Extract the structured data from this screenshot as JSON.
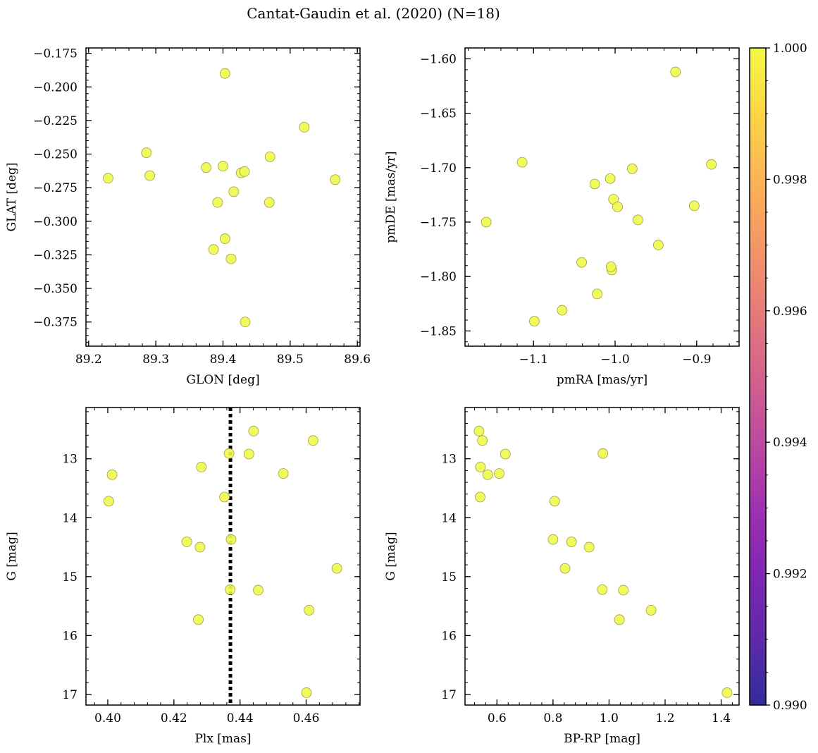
{
  "title": "Cantat-Gaudin et al. (2020) (N=18)",
  "colors": {
    "point_fill": "#f0f94b",
    "point_edge": "#9c9c4c",
    "axis": "#000000",
    "vline": "#000000"
  },
  "colorbar": {
    "ticks": [
      "1.000",
      "0.998",
      "0.996",
      "0.994",
      "0.992",
      "0.990"
    ],
    "tick_values": [
      1.0,
      0.998,
      0.996,
      0.994,
      0.992,
      0.99
    ],
    "range": [
      0.99,
      1.0
    ],
    "colormap": "plasma"
  },
  "chart_data": [
    {
      "type": "scatter",
      "name": "glon-glat",
      "xlabel": "GLON [deg]",
      "ylabel": "GLAT [deg]",
      "xlim": [
        89.196,
        89.604
      ],
      "ylim": [
        -0.393,
        -0.171
      ],
      "xticks": [
        89.2,
        89.3,
        89.4,
        89.5,
        89.6
      ],
      "xtick_labels": [
        "89.2",
        "89.3",
        "89.4",
        "89.5",
        "89.6"
      ],
      "yticks": [
        -0.175,
        -0.2,
        -0.225,
        -0.25,
        -0.275,
        -0.3,
        -0.325,
        -0.35,
        -0.375
      ],
      "ytick_labels": [
        "−0.175",
        "−0.200",
        "−0.225",
        "−0.250",
        "−0.275",
        "−0.300",
        "−0.325",
        "−0.350",
        "−0.375"
      ],
      "x": [
        89.403,
        89.521,
        89.286,
        89.47,
        89.229,
        89.291,
        89.375,
        89.4,
        89.427,
        89.432,
        89.567,
        89.416,
        89.392,
        89.469,
        89.403,
        89.386,
        89.412,
        89.433
      ],
      "y": [
        -0.19,
        -0.23,
        -0.249,
        -0.252,
        -0.268,
        -0.266,
        -0.26,
        -0.259,
        -0.264,
        -0.263,
        -0.269,
        -0.278,
        -0.286,
        -0.286,
        -0.313,
        -0.321,
        -0.328,
        -0.375
      ]
    },
    {
      "type": "scatter",
      "name": "pmra-pmde",
      "xlabel": "pmRA [mas/yr]",
      "ylabel": "pmDE [mas/yr]",
      "xlim": [
        -1.184,
        -0.848
      ],
      "ylim": [
        -1.864,
        -1.59
      ],
      "xticks": [
        -1.1,
        -1.0,
        -0.9
      ],
      "xtick_labels": [
        "−1.1",
        "−1.0",
        "−0.9"
      ],
      "yticks": [
        -1.6,
        -1.65,
        -1.7,
        -1.75,
        -1.8,
        -1.85
      ],
      "ytick_labels": [
        "−1.60",
        "−1.65",
        "−1.70",
        "−1.75",
        "−1.80",
        "−1.85"
      ],
      "x": [
        -0.926,
        -1.114,
        -0.882,
        -0.979,
        -1.006,
        -1.025,
        -1.002,
        -0.997,
        -1.158,
        -0.903,
        -0.972,
        -0.947,
        -1.041,
        -1.004,
        -1.005,
        -1.022,
        -1.065,
        -1.099
      ],
      "y": [
        -1.612,
        -1.695,
        -1.697,
        -1.701,
        -1.71,
        -1.715,
        -1.729,
        -1.736,
        -1.75,
        -1.735,
        -1.748,
        -1.771,
        -1.787,
        -1.794,
        -1.791,
        -1.816,
        -1.831,
        -1.841
      ]
    },
    {
      "type": "scatter",
      "name": "plx-g",
      "xlabel": "Plx [mas]",
      "ylabel": "G [mag]",
      "xlim": [
        0.3934,
        0.4763
      ],
      "ylim": [
        17.18,
        12.13
      ],
      "y_inverted": true,
      "xticks": [
        0.4,
        0.42,
        0.44,
        0.46
      ],
      "xtick_labels": [
        "0.40",
        "0.42",
        "0.44",
        "0.46"
      ],
      "yticks": [
        13,
        14,
        15,
        16,
        17
      ],
      "ytick_labels": [
        "13",
        "14",
        "15",
        "16",
        "17"
      ],
      "vline": 0.4371,
      "x": [
        0.4441,
        0.4621,
        0.4367,
        0.4427,
        0.4283,
        0.4013,
        0.4531,
        0.4353,
        0.4003,
        0.4239,
        0.4279,
        0.4373,
        0.4693,
        0.437,
        0.4455,
        0.4609,
        0.4274,
        0.4601
      ],
      "y": [
        12.53,
        12.69,
        12.91,
        12.92,
        13.14,
        13.27,
        13.25,
        13.65,
        13.72,
        14.41,
        14.5,
        14.37,
        14.86,
        15.22,
        15.23,
        15.57,
        15.73,
        16.97
      ]
    },
    {
      "type": "scatter",
      "name": "bprp-g",
      "xlabel": "BP-RP [mag]",
      "ylabel": "G [mag]",
      "xlim": [
        0.486,
        1.464
      ],
      "ylim": [
        17.18,
        12.13
      ],
      "y_inverted": true,
      "xticks": [
        0.6,
        0.8,
        1.0,
        1.2,
        1.4
      ],
      "xtick_labels": [
        "0.6",
        "0.8",
        "1.0",
        "1.2",
        "1.4"
      ],
      "yticks": [
        13,
        14,
        15,
        16,
        17
      ],
      "ytick_labels": [
        "13",
        "14",
        "15",
        "16",
        "17"
      ],
      "x": [
        0.536,
        0.548,
        0.978,
        0.63,
        0.541,
        0.567,
        0.608,
        0.54,
        0.806,
        0.8,
        0.866,
        0.929,
        0.843,
        0.976,
        1.051,
        1.15,
        1.037,
        1.421
      ],
      "y": [
        12.53,
        12.69,
        12.91,
        12.92,
        13.14,
        13.27,
        13.25,
        13.65,
        13.72,
        14.37,
        14.41,
        14.5,
        14.86,
        15.22,
        15.23,
        15.57,
        15.73,
        16.97
      ]
    }
  ]
}
